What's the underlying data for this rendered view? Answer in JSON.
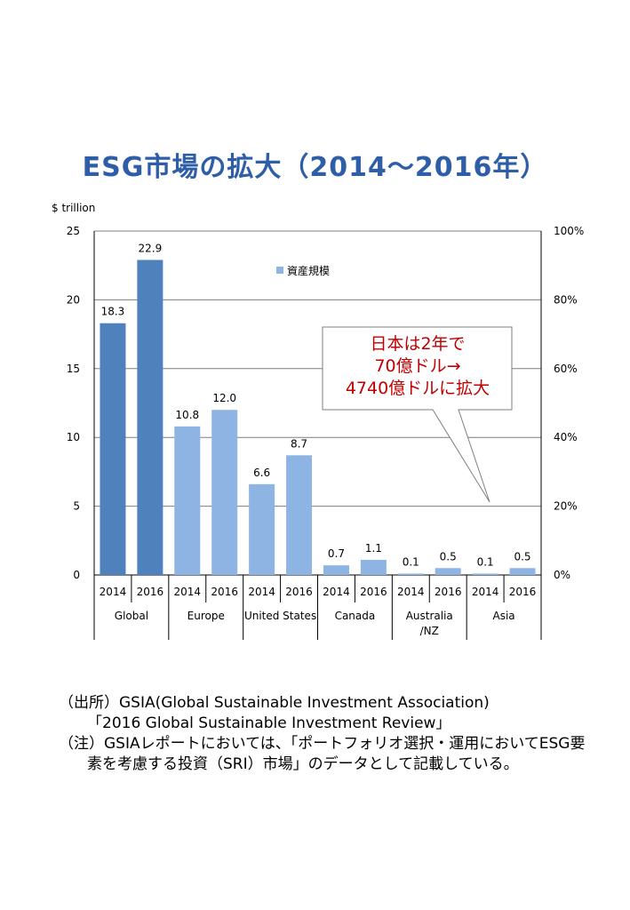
{
  "title": "ESG市場の拡大（2014〜2016年）",
  "chart_data": {
    "type": "bar",
    "y_unit_label": "$ trillion",
    "ylim": [
      0,
      25
    ],
    "y_ticks": [
      "0",
      "5",
      "10",
      "15",
      "20",
      "25"
    ],
    "y_tick_values": [
      0,
      5,
      10,
      15,
      20,
      25
    ],
    "y2_ticks": [
      "0%",
      "20%",
      "40%",
      "60%",
      "80%",
      "100%"
    ],
    "y2_tick_values": [
      0,
      20,
      40,
      60,
      80,
      100
    ],
    "y2lim": [
      0,
      100
    ],
    "grid": true,
    "legend": {
      "label": "資産規模",
      "placement": "top-center"
    },
    "groups": [
      {
        "region": "Global",
        "bars": [
          {
            "year": "2014",
            "value": 18.3,
            "label": "18.3"
          },
          {
            "year": "2016",
            "value": 22.9,
            "label": "22.9"
          }
        ]
      },
      {
        "region": "Europe",
        "bars": [
          {
            "year": "2014",
            "value": 10.8,
            "label": "10.8"
          },
          {
            "year": "2016",
            "value": 12.0,
            "label": "12.0"
          }
        ]
      },
      {
        "region": "United States",
        "bars": [
          {
            "year": "2014",
            "value": 6.6,
            "label": "6.6"
          },
          {
            "year": "2016",
            "value": 8.7,
            "label": "8.7"
          }
        ]
      },
      {
        "region": "Canada",
        "bars": [
          {
            "year": "2014",
            "value": 0.7,
            "label": "0.7"
          },
          {
            "year": "2016",
            "value": 1.1,
            "label": "1.1"
          }
        ]
      },
      {
        "region": [
          "Australia",
          "/NZ"
        ],
        "bars": [
          {
            "year": "2014",
            "value": 0.1,
            "label": "0.1"
          },
          {
            "year": "2016",
            "value": 0.5,
            "label": "0.5"
          }
        ]
      },
      {
        "region": "Asia",
        "bars": [
          {
            "year": "2014",
            "value": 0.1,
            "label": "0.1"
          },
          {
            "year": "2016",
            "value": 0.5,
            "label": "0.5"
          }
        ]
      }
    ],
    "colors": {
      "global": "#4f81bd",
      "other": "#8eb4e3",
      "callout_text": "#c00000",
      "grid": "#7f7f7f"
    },
    "callout": {
      "lines": [
        "日本は2年で",
        "70億ドル→",
        "4740億ドルに拡大"
      ]
    }
  },
  "notes": {
    "source_line1": "（出所）GSIA(Global Sustainable Investment Association)",
    "source_line2": "「2016 Global Sustainable Investment Review」",
    "note_line1": "（注）GSIAレポートにおいては、「ポートフォリオ選択・運用においてESG要",
    "note_line2": "素を考慮する投資（SRI）市場」のデータとして記載している。"
  }
}
